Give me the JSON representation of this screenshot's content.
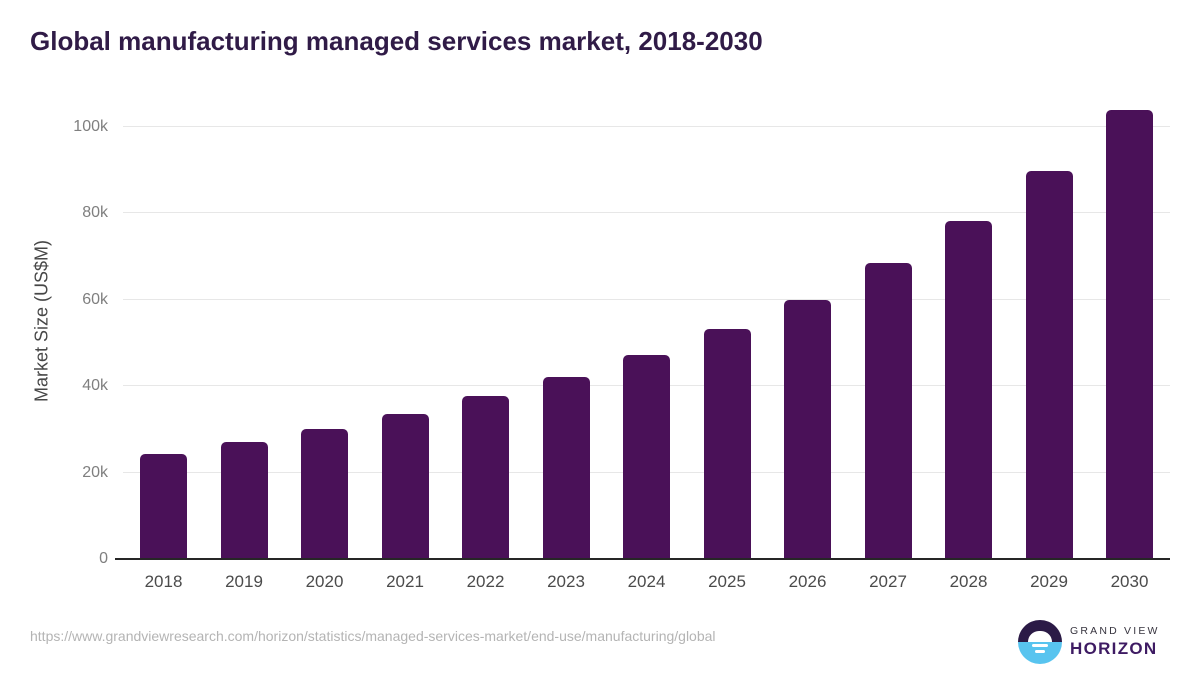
{
  "header": {
    "title": "Global manufacturing managed services market, 2018-2030"
  },
  "chart_data": {
    "type": "bar",
    "title": "Global manufacturing managed services market, 2018-2030",
    "categories": [
      "2018",
      "2019",
      "2020",
      "2021",
      "2022",
      "2023",
      "2024",
      "2025",
      "2026",
      "2027",
      "2028",
      "2029",
      "2030"
    ],
    "values": [
      24300,
      27000,
      30100,
      33500,
      37600,
      42000,
      47200,
      53100,
      60000,
      68400,
      78100,
      89700,
      103900
    ],
    "unit": "US$M",
    "xlabel": "",
    "ylabel": "Market Size (US$M)",
    "ylim": [
      0,
      105000
    ],
    "yticks": [
      {
        "value": 0,
        "label": "0"
      },
      {
        "value": 20000,
        "label": "20k"
      },
      {
        "value": 40000,
        "label": "40k"
      },
      {
        "value": 60000,
        "label": "60k"
      },
      {
        "value": 80000,
        "label": "80k"
      },
      {
        "value": 100000,
        "label": "100k"
      }
    ],
    "grid": true,
    "legend": false
  },
  "footer": {
    "source_url": "https://www.grandviewresearch.com/horizon/statistics/managed-services-market/end-use/manufacturing/global",
    "logo": {
      "line1": "GRAND VIEW",
      "line2": "HORIZON",
      "icon": "horizon-sunrise-circle"
    }
  },
  "colors": {
    "bar": "#4a1158",
    "title": "#301b47",
    "grid": "#e7e7e7",
    "axis": "#262626",
    "y_tick": "#7f7f7f",
    "x_tick": "#4b4b4b",
    "url": "#b4b4b4",
    "logo_dark": "#2b1a46",
    "logo_blue": "#58c4ef",
    "logo_purple": "#3e1b63"
  }
}
